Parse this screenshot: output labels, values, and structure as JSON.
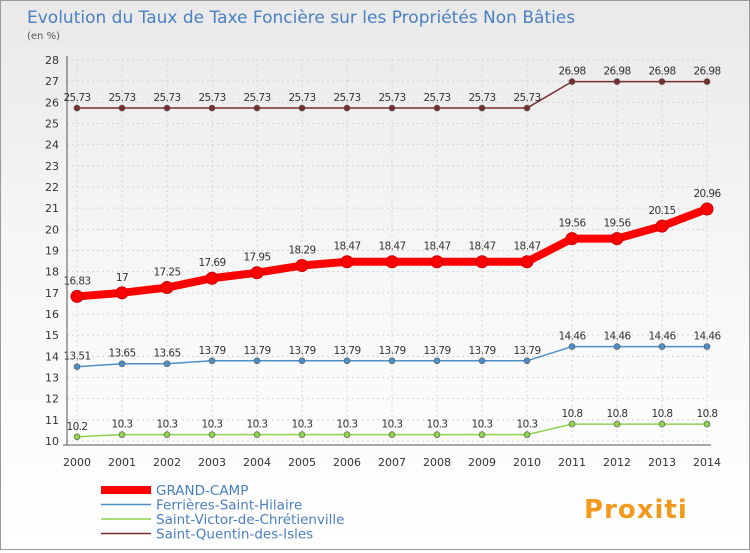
{
  "chart_data": {
    "type": "line",
    "title": "Evolution du Taux de Taxe Foncière sur les Propriétés Non Bâties",
    "ylabel": "(en %)",
    "xlabel": "",
    "ylim": [
      10,
      28
    ],
    "y_ticks": [
      "10",
      "11",
      "12",
      "13",
      "14",
      "15",
      "16",
      "17",
      "18",
      "19",
      "20",
      "21",
      "22",
      "23",
      "24",
      "25",
      "26",
      "27",
      "28"
    ],
    "categories": [
      "2000",
      "2001",
      "2002",
      "2003",
      "2004",
      "2005",
      "2006",
      "2007",
      "2008",
      "2009",
      "2010",
      "2011",
      "2012",
      "2013",
      "2014"
    ],
    "grid": true,
    "legend_position": "bottom-left",
    "series": [
      {
        "name": "GRAND-CAMP",
        "color": "#ff0000",
        "emphasis": true,
        "values": [
          16.83,
          17,
          17.25,
          17.69,
          17.95,
          18.29,
          18.47,
          18.47,
          18.47,
          18.47,
          18.47,
          19.56,
          19.56,
          20.15,
          20.96
        ],
        "labels": [
          "16.83",
          "17",
          "17.25",
          "17.69",
          "17.95",
          "18.29",
          "18.47",
          "18.47",
          "18.47",
          "18.47",
          "18.47",
          "19.56",
          "19.56",
          "20.15",
          "20.96"
        ]
      },
      {
        "name": "Ferrières-Saint-Hilaire",
        "color": "#4f8fc7",
        "values": [
          13.51,
          13.65,
          13.65,
          13.79,
          13.79,
          13.79,
          13.79,
          13.79,
          13.79,
          13.79,
          13.79,
          14.46,
          14.46,
          14.46,
          14.46
        ],
        "labels": [
          "13.51",
          "13.65",
          "13.65",
          "13.79",
          "13.79",
          "13.79",
          "13.79",
          "13.79",
          "13.79",
          "13.79",
          "13.79",
          "14.46",
          "14.46",
          "14.46",
          "14.46"
        ]
      },
      {
        "name": "Saint-Victor-de-Chrétienville",
        "color": "#8ed24d",
        "values": [
          10.2,
          10.3,
          10.3,
          10.3,
          10.3,
          10.3,
          10.3,
          10.3,
          10.3,
          10.3,
          10.3,
          10.8,
          10.8,
          10.8,
          10.8
        ],
        "labels": [
          "10.2",
          "10.3",
          "10.3",
          "10.3",
          "10.3",
          "10.3",
          "10.3",
          "10.3",
          "10.3",
          "10.3",
          "10.3",
          "10.8",
          "10.8",
          "10.8",
          "10.8"
        ]
      },
      {
        "name": "Saint-Quentin-des-Isles",
        "color": "#7a2f2f",
        "values": [
          25.73,
          25.73,
          25.73,
          25.73,
          25.73,
          25.73,
          25.73,
          25.73,
          25.73,
          25.73,
          25.73,
          26.98,
          26.98,
          26.98,
          26.98
        ],
        "labels": [
          "25.73",
          "25.73",
          "25.73",
          "25.73",
          "25.73",
          "25.73",
          "25.73",
          "25.73",
          "25.73",
          "25.73",
          "25.73",
          "26.98",
          "26.98",
          "26.98",
          "26.98"
        ]
      }
    ]
  },
  "watermark": {
    "text": "Proxiti"
  }
}
